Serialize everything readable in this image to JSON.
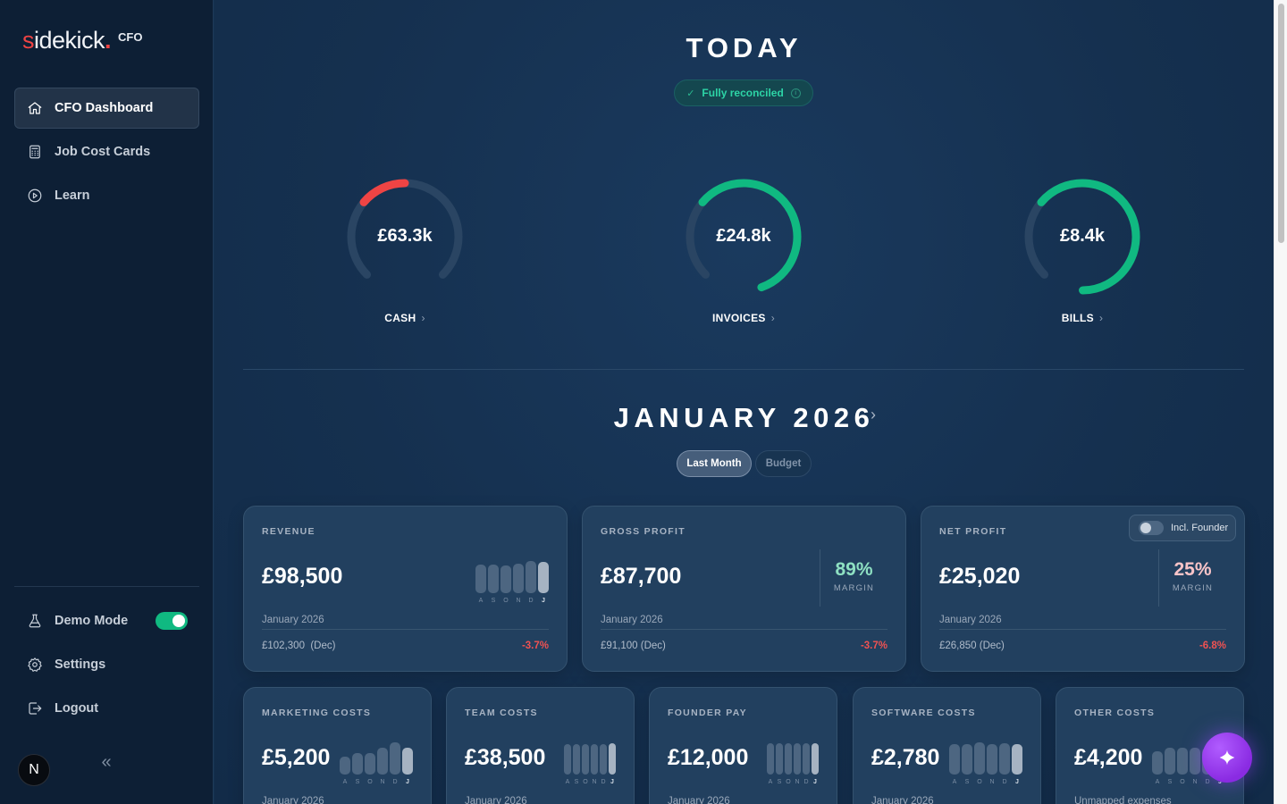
{
  "sidebar": {
    "logo": {
      "word_first": "s",
      "word_rest": "idekick",
      "dot": ".",
      "suffix": "CFO"
    },
    "items": [
      {
        "label": "CFO Dashboard",
        "icon": "home-icon",
        "active": true
      },
      {
        "label": "Job Cost Cards",
        "icon": "calculator-icon",
        "active": false
      },
      {
        "label": "Learn",
        "icon": "play-circle-icon",
        "active": false
      }
    ],
    "bottom_items": [
      {
        "label": "Demo Mode",
        "icon": "flask-icon",
        "toggle": true
      },
      {
        "label": "Settings",
        "icon": "gear-icon"
      },
      {
        "label": "Logout",
        "icon": "logout-icon"
      }
    ],
    "avatar_initial": "N",
    "collapse_glyph": "«"
  },
  "today": {
    "title": "TODAY",
    "status": {
      "label": "Fully reconciled",
      "check": "✓",
      "info": "i"
    },
    "gauges": [
      {
        "label": "CASH",
        "value": "£63.3k",
        "fraction": 0.27,
        "color": "#ef4444"
      },
      {
        "label": "INVOICES",
        "value": "£24.8k",
        "fraction": 0.78,
        "color": "#10b981"
      },
      {
        "label": "BILLS",
        "value": "£8.4k",
        "fraction": 0.85,
        "color": "#10b981"
      }
    ],
    "gauge_track_color": "#2a4563",
    "chevron": "›"
  },
  "period": {
    "title": "JANUARY 2026",
    "chevron": "›",
    "segments": [
      {
        "label": "Last Month",
        "active": true
      },
      {
        "label": "Budget",
        "active": false
      }
    ]
  },
  "kpis": [
    {
      "title": "REVENUE",
      "value": "£98,500",
      "period": "January 2026",
      "prev": "£102,300  (Dec)",
      "delta": "-3.7%",
      "spark": {
        "labels": [
          "A",
          "S",
          "O",
          "N",
          "D",
          "J"
        ],
        "heights": [
          32,
          32,
          31,
          33,
          36,
          35
        ]
      }
    },
    {
      "title": "GROSS PROFIT",
      "value": "£87,700",
      "period": "January 2026",
      "prev": "£91,100 (Dec)",
      "delta": "-3.7%",
      "margin": {
        "pct": "89%",
        "label": "MARGIN",
        "color": "#8ee0c2"
      }
    },
    {
      "title": "NET PROFIT",
      "value": "£25,020",
      "period": "January 2026",
      "prev": "£26,850 (Dec)",
      "delta": "-6.8%",
      "margin": {
        "pct": "25%",
        "label": "MARGIN",
        "color": "#f9c4c8"
      },
      "toggle_label": "Incl. Founder"
    }
  ],
  "costs": [
    {
      "title": "MARKETING COSTS",
      "value": "£5,200",
      "sub": "January 2026",
      "spark": {
        "labels": [
          "A",
          "S",
          "O",
          "N",
          "D",
          "J"
        ],
        "heights": [
          20,
          24,
          24,
          30,
          36,
          30
        ]
      }
    },
    {
      "title": "TEAM COSTS",
      "value": "£38,500",
      "sub": "January 2026",
      "spark": {
        "labels": [
          "A",
          "S",
          "O",
          "N",
          "D",
          "J"
        ],
        "heights": [
          34,
          34,
          34,
          34,
          34,
          35
        ]
      }
    },
    {
      "title": "FOUNDER PAY",
      "value": "£12,000",
      "sub": "January 2026",
      "spark": {
        "labels": [
          "A",
          "S",
          "O",
          "N",
          "D",
          "J"
        ],
        "heights": [
          35,
          35,
          35,
          35,
          35,
          35
        ]
      }
    },
    {
      "title": "SOFTWARE COSTS",
      "value": "£2,780",
      "sub": "January 2026",
      "spark": {
        "labels": [
          "A",
          "S",
          "O",
          "N",
          "D",
          "J"
        ],
        "heights": [
          34,
          34,
          36,
          34,
          35,
          34
        ]
      }
    },
    {
      "title": "OTHER COSTS",
      "value": "£4,200",
      "sub": "Unmapped expenses",
      "spark": {
        "labels": [
          "A",
          "S",
          "O",
          "N",
          "D",
          "J"
        ],
        "heights": [
          26,
          30,
          30,
          30,
          30,
          30
        ]
      }
    }
  ],
  "fab": {
    "icon": "sparkle-icon"
  }
}
